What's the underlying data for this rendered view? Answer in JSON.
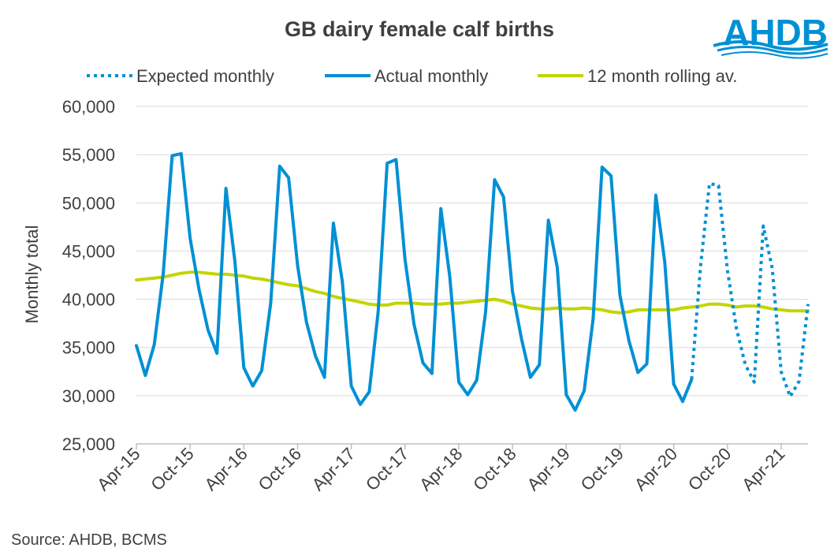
{
  "chart_data": {
    "type": "line",
    "title": "GB dairy female calf births",
    "xlabel": "",
    "ylabel": "Monthly total",
    "ylim": [
      25000,
      60000
    ],
    "yticks": [
      25000,
      30000,
      35000,
      40000,
      45000,
      50000,
      55000,
      60000
    ],
    "ytick_labels": [
      "25,000",
      "30,000",
      "35,000",
      "40,000",
      "45,000",
      "50,000",
      "55,000",
      "60,000"
    ],
    "x_start": "Apr-15",
    "n_months": 76,
    "xtick_labels": [
      "Apr-15",
      "Oct-15",
      "Apr-16",
      "Oct-16",
      "Apr-17",
      "Oct-17",
      "Apr-18",
      "Oct-18",
      "Apr-19",
      "Oct-19",
      "Apr-20",
      "Oct-20",
      "Apr-21"
    ],
    "gridlines": true,
    "legend_position": "top",
    "series": [
      {
        "name": "Expected monthly",
        "style": "dotted",
        "color": "#0090d4",
        "start_index": 62,
        "values": [
          31700,
          43500,
          52000,
          51800,
          43000,
          37000,
          33200,
          31400,
          47600,
          43200,
          32500,
          29900,
          31500,
          39500
        ]
      },
      {
        "name": "Actual monthly",
        "style": "solid",
        "color": "#0090d4",
        "start_index": 0,
        "values": [
          35200,
          32100,
          35300,
          42700,
          54900,
          55100,
          46300,
          41000,
          36800,
          34400,
          51500,
          43900,
          32900,
          31000,
          32600,
          39600,
          53800,
          52600,
          43500,
          37600,
          34100,
          31900,
          47900,
          41800,
          31000,
          29100,
          30400,
          38700,
          54100,
          54500,
          44100,
          37400,
          33400,
          32300,
          49400,
          42300,
          31400,
          30100,
          31600,
          38700,
          52400,
          50600,
          40800,
          35900,
          31900,
          33200,
          48200,
          43300,
          30100,
          28500,
          30500,
          38000,
          53700,
          52800,
          40400,
          35700,
          32400,
          33300,
          50800,
          43900,
          31200,
          29400,
          31700
        ]
      },
      {
        "name": "12 month rolling av.",
        "style": "solid",
        "color": "#c3d500",
        "start_index": 0,
        "values": [
          42000,
          42100,
          42200,
          42300,
          42500,
          42700,
          42800,
          42800,
          42700,
          42600,
          42600,
          42500,
          42400,
          42200,
          42100,
          41900,
          41700,
          41500,
          41400,
          41100,
          40800,
          40600,
          40300,
          40100,
          39900,
          39700,
          39500,
          39400,
          39400,
          39600,
          39600,
          39600,
          39500,
          39500,
          39500,
          39600,
          39600,
          39700,
          39800,
          39900,
          40000,
          39800,
          39500,
          39300,
          39100,
          39000,
          39000,
          39100,
          39000,
          39000,
          39100,
          39000,
          38900,
          38700,
          38600,
          38700,
          38900,
          38900,
          38900,
          38900,
          38900,
          39100,
          39200,
          39300,
          39500,
          39500,
          39400,
          39200,
          39300,
          39300,
          39200,
          39000,
          38900,
          38800,
          38800,
          38800
        ]
      }
    ],
    "legend": [
      "Expected monthly",
      "Actual monthly",
      "12 month rolling av."
    ],
    "source": "Source: AHDB, BCMS"
  },
  "logo": {
    "text": "AHDB",
    "color": "#0090d4"
  },
  "colors": {
    "grid": "#d9d9d9",
    "axis": "#bfbfbf",
    "text": "#404040"
  }
}
